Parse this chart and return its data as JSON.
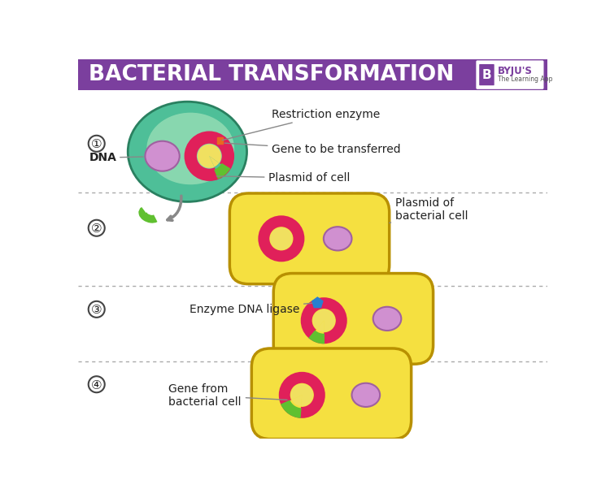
{
  "title": "BACTERIAL TRANSFORMATION",
  "title_bg": "#7B3F9E",
  "title_color": "#FFFFFF",
  "bg_color": "#FFFFFF",
  "cell_outer_color": "#4EBF98",
  "cell_inner_color": "#A8E8B0",
  "nucleus_color": "#D090D0",
  "plasmid_stroke": "#E0205A",
  "plasmid_fill": "#F0E060",
  "gene_color": "#60C030",
  "restriction_color": "#E86820",
  "bacteria_fill": "#F5E040",
  "bacteria_edge": "#B89000",
  "blue_enzyme": "#2880D0",
  "arrow_color": "#888888",
  "annot_color": "#888888",
  "text_color": "#222222",
  "sep_color": "#AAAAAA",
  "step_bg": "#FFFFFF",
  "step_edge": "#444444",
  "label_restriction": "Restriction enzyme",
  "label_gene": "Gene to be transferred",
  "label_plasmid_cell": "Plasmid of cell",
  "label_dna": "DNA",
  "label_plasmid_bact": "Plasmid of\nbacterial cell",
  "label_enzyme": "Enzyme DNA ligase",
  "label_gene_bact": "Gene from\nbacterial cell"
}
